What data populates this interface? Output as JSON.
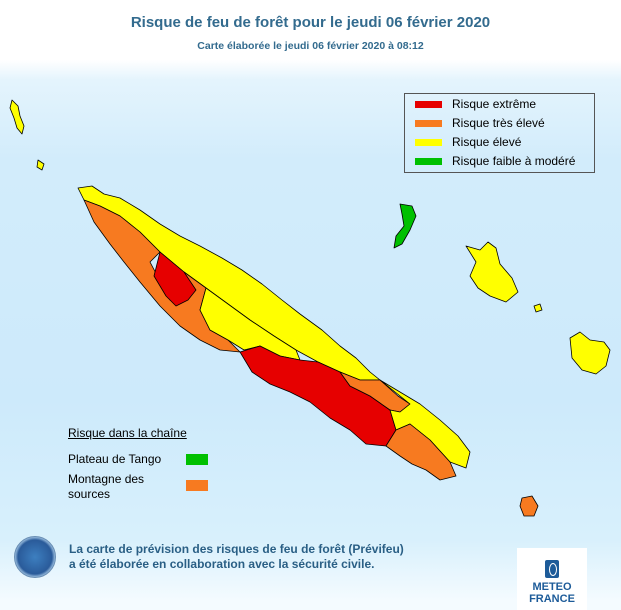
{
  "header": {
    "title": "Risque de feu de forêt pour le jeudi 06 février 2020",
    "subtitle": "Carte élaborée le jeudi 06 février 2020 à 08:12"
  },
  "colors": {
    "extreme": "#e60000",
    "tres_eleve": "#f77a20",
    "eleve": "#ffff00",
    "faible": "#00c000"
  },
  "legend": [
    {
      "label": "Risque extrême",
      "color": "#e60000"
    },
    {
      "label": "Risque très élevé",
      "color": "#f77a20"
    },
    {
      "label": "Risque élevé",
      "color": "#ffff00"
    },
    {
      "label": "Risque faible à modéré",
      "color": "#00c000"
    }
  ],
  "chain": {
    "title": "Risque dans la chaîne",
    "items": [
      {
        "label": "Plateau de Tango",
        "color": "#00c000"
      },
      {
        "label": "Montagne des sources",
        "color": "#f77a20"
      }
    ]
  },
  "footer": {
    "line1": "La carte de prévision des risques de feu de forêt (Prévifeu)",
    "line2": "a été élaborée en collaboration avec la sécurité civile."
  },
  "logos": {
    "securite_civile": "Sécurité Civile Nouvelle-Calédonie",
    "meteo_line1": "METEO",
    "meteo_line2": "FRANCE"
  }
}
